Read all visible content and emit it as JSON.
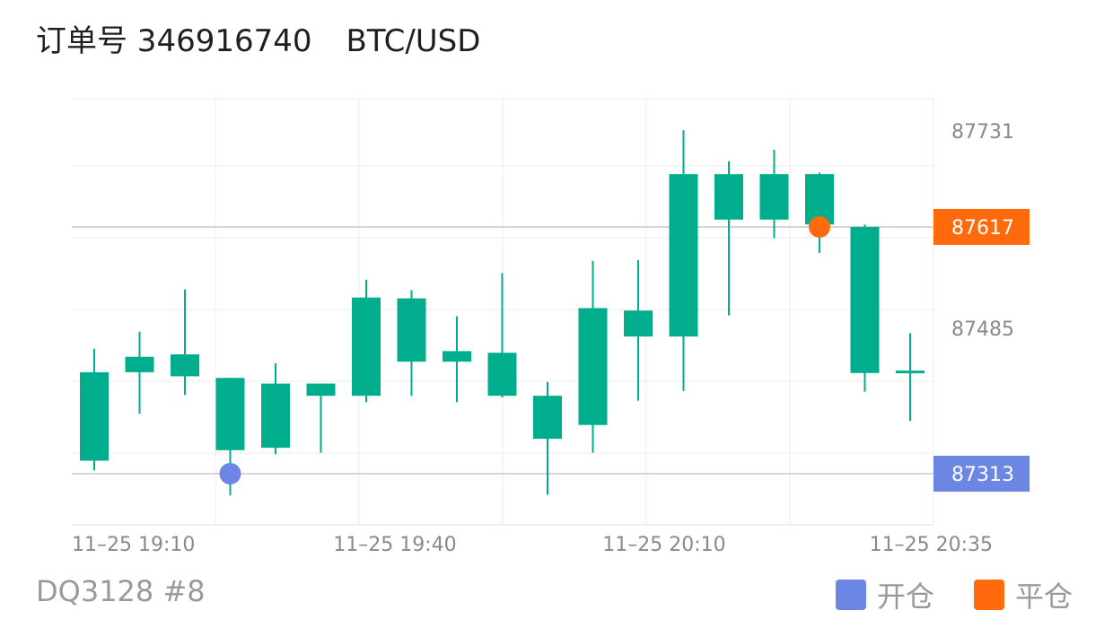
{
  "header": {
    "order_label": "订单号 346916740",
    "pair": "BTC/USD"
  },
  "footer": {
    "code": "DQ3128 #8"
  },
  "legend": {
    "open_label": "开仓",
    "close_label": "平仓",
    "open_color": "#6b87e3",
    "close_color": "#ff6a0c"
  },
  "colors": {
    "up": "#00ae8e",
    "down": "#ea4d60",
    "grid": "#ececec",
    "axis_text": "#8a8a8a"
  },
  "chart_data": {
    "type": "candlestick",
    "x_tick_labels": [
      "11–25 19:10",
      "11–25 19:40",
      "11–25 20:10",
      "11–25 20:35"
    ],
    "y_tick_labels": [
      "87731",
      "87485"
    ],
    "ylim": [
      87250,
      87775
    ],
    "candles": [
      {
        "open": 87329,
        "close": 87438,
        "high": 87467,
        "low": 87317
      },
      {
        "open": 87438,
        "close": 87457,
        "high": 87488,
        "low": 87387
      },
      {
        "open": 87433,
        "close": 87460,
        "high": 87540,
        "low": 87410
      },
      {
        "open": 87342,
        "close": 87431,
        "high": 87431,
        "low": 87286
      },
      {
        "open": 87345,
        "close": 87424,
        "high": 87449,
        "low": 87337
      },
      {
        "open": 87409,
        "close": 87424,
        "high": 87424,
        "low": 87339
      },
      {
        "open": 87409,
        "close": 87530,
        "high": 87552,
        "low": 87401
      },
      {
        "open": 87451,
        "close": 87529,
        "high": 87539,
        "low": 87409
      },
      {
        "open": 87451,
        "close": 87464,
        "high": 87507,
        "low": 87401
      },
      {
        "open": 87409,
        "close": 87462,
        "high": 87560,
        "low": 87407
      },
      {
        "open": 87356,
        "close": 87409,
        "high": 87426,
        "low": 87287
      },
      {
        "open": 87373,
        "close": 87517,
        "high": 87575,
        "low": 87339
      },
      {
        "open": 87482,
        "close": 87514,
        "high": 87576,
        "low": 87403
      },
      {
        "open": 87482,
        "close": 87682,
        "high": 87736,
        "low": 87415
      },
      {
        "open": 87626,
        "close": 87682,
        "high": 87698,
        "low": 87508
      },
      {
        "open": 87626,
        "close": 87682,
        "high": 87712,
        "low": 87603
      },
      {
        "open": 87620,
        "close": 87682,
        "high": 87684,
        "low": 87585
      },
      {
        "open": 87437,
        "close": 87617,
        "high": 87620,
        "low": 87414
      },
      {
        "open": 87437,
        "close": 87440,
        "high": 87486,
        "low": 87378
      }
    ],
    "markers": [
      {
        "label": "开仓",
        "index": 3,
        "price": 87313,
        "color": "#6b87e3"
      },
      {
        "label": "平仓",
        "index": 16,
        "price": 87617,
        "color": "#ff6a0c"
      }
    ],
    "price_tags": [
      {
        "value": "87617",
        "price": 87617,
        "color": "#ff6a0c"
      },
      {
        "value": "87313",
        "price": 87313,
        "color": "#6b87e3"
      }
    ]
  }
}
